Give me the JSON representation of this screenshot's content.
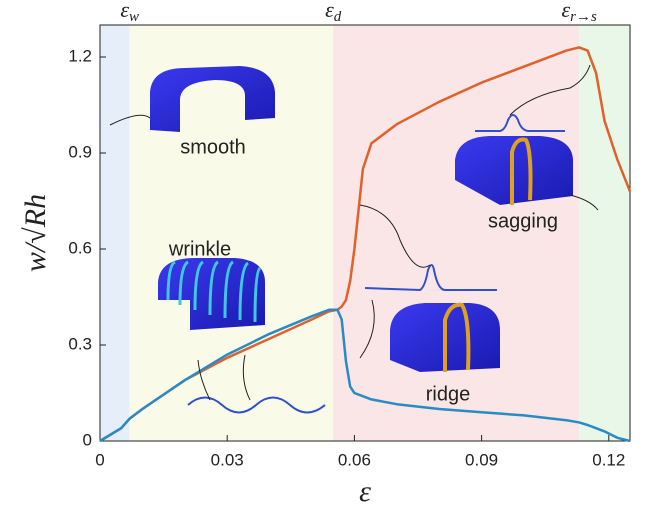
{
  "chart_data": {
    "type": "line",
    "x_label": "ε",
    "y_label": "w/√Rh",
    "x": [
      0,
      0.005,
      0.007,
      0.01,
      0.02,
      0.03,
      0.04,
      0.05,
      0.054,
      0.056,
      0.057,
      0.058,
      0.059,
      0.06,
      0.062,
      0.064,
      0.066,
      0.07,
      0.08,
      0.09,
      0.1,
      0.11,
      0.113,
      0.115,
      0.117,
      0.119,
      0.122,
      0.125
    ],
    "series": [
      {
        "color": "#e0622a",
        "values": [
          0,
          0.04,
          0.07,
          0.1,
          0.19,
          0.26,
          0.32,
          0.38,
          0.405,
          0.41,
          0.42,
          0.44,
          0.5,
          0.6,
          0.85,
          0.93,
          0.95,
          0.99,
          1.06,
          1.12,
          1.17,
          1.22,
          1.23,
          1.22,
          1.15,
          1.0,
          0.88,
          0.78
        ]
      },
      {
        "color": "#2a8ac6",
        "values": [
          0,
          0.04,
          0.07,
          0.1,
          0.19,
          0.27,
          0.335,
          0.39,
          0.41,
          0.41,
          0.38,
          0.25,
          0.17,
          0.15,
          0.14,
          0.13,
          0.125,
          0.115,
          0.1,
          0.09,
          0.08,
          0.065,
          0.058,
          0.05,
          0.04,
          0.03,
          0.01,
          0
        ]
      }
    ],
    "xlim": [
      0,
      0.125
    ],
    "ylim": [
      0,
      1.3
    ],
    "xticks": [
      0,
      0.03,
      0.06,
      0.09,
      0.12
    ],
    "yticks": [
      0,
      0.3,
      0.6,
      0.9,
      1.2
    ],
    "regions": [
      {
        "from": 0,
        "to": 0.007,
        "color": "#e6eef9"
      },
      {
        "from": 0.007,
        "to": 0.055,
        "color": "#fafae8",
        "label": {
          "base": "ε",
          "sub": "w"
        }
      },
      {
        "from": 0.055,
        "to": 0.113,
        "color": "#fae6e6",
        "label": {
          "base": "ε",
          "sub": "d"
        }
      },
      {
        "from": 0.113,
        "to": 0.125,
        "color": "#e8f7e8",
        "label": {
          "base": "ε",
          "sub": "r→s"
        }
      }
    ],
    "annotations": [
      "smooth",
      "wrinkle",
      "ridge",
      "sagging"
    ]
  }
}
